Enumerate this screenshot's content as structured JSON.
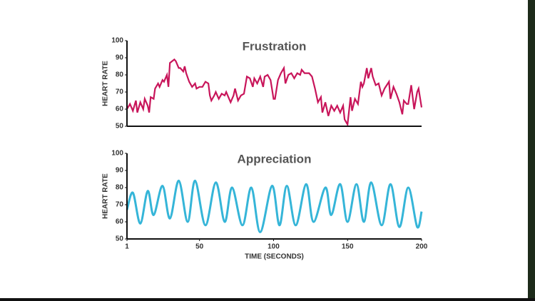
{
  "chart_data": [
    {
      "type": "line",
      "title": "Frustration",
      "y_label": "HEART RATE",
      "interpolation": "linear",
      "xlim": [
        1,
        200
      ],
      "ylim": [
        50,
        100
      ],
      "yticks": [
        50,
        60,
        70,
        80,
        90,
        100
      ],
      "x": [
        1,
        3,
        5,
        7,
        8,
        10,
        12,
        13,
        15,
        16,
        17,
        19,
        20,
        22,
        23,
        25,
        26,
        28,
        29,
        30,
        33,
        34,
        36,
        37,
        39,
        40,
        41,
        43,
        45,
        47,
        48,
        50,
        52,
        54,
        56,
        57,
        58,
        60,
        61,
        63,
        65,
        67,
        68,
        70,
        71,
        73,
        74,
        76,
        78,
        80,
        82,
        84,
        86,
        87,
        89,
        91,
        93,
        94,
        96,
        98,
        100,
        101,
        103,
        105,
        107,
        108,
        110,
        112,
        114,
        116,
        118,
        119,
        121,
        124,
        126,
        128,
        130,
        132,
        133,
        135,
        137,
        139,
        141,
        143,
        145,
        147,
        148,
        150,
        152,
        153,
        155,
        157,
        159,
        160,
        161,
        163,
        164,
        166,
        167,
        169,
        171,
        173,
        175,
        178,
        179,
        181,
        183,
        185,
        187,
        188,
        190,
        191,
        193,
        195,
        197,
        198,
        200
      ],
      "series": [
        {
          "color": "#c8155a",
          "values": [
            60,
            63,
            59,
            65,
            58,
            64,
            60,
            66,
            62,
            58,
            67,
            66,
            72,
            75,
            73,
            77,
            76,
            80,
            73,
            87,
            89,
            88,
            84,
            84,
            82,
            85,
            81,
            76,
            73,
            75,
            72,
            73,
            73,
            76,
            75,
            68,
            65,
            68,
            70,
            66,
            69,
            68,
            70,
            66,
            64,
            68,
            72,
            65,
            68,
            69,
            79,
            78,
            73,
            78,
            75,
            79,
            73,
            79,
            80,
            77,
            66,
            66,
            77,
            81,
            84,
            75,
            80,
            81,
            78,
            81,
            80,
            83,
            81,
            81,
            79,
            72,
            64,
            67,
            58,
            64,
            56,
            62,
            59,
            62,
            58,
            62,
            54,
            51,
            67,
            59,
            66,
            63,
            76,
            73,
            75,
            84,
            78,
            84,
            79,
            74,
            75,
            68,
            72,
            76,
            66,
            73,
            69,
            64,
            57,
            65,
            63,
            63,
            74,
            60,
            70,
            72,
            61
          ]
        }
      ]
    },
    {
      "type": "line",
      "title": "Appreciation",
      "y_label": "HEART RATE",
      "x_label": "TIME (SECONDS)",
      "interpolation": "smooth",
      "xlim": [
        1,
        200
      ],
      "xticks": [
        1,
        50,
        100,
        150,
        200
      ],
      "ylim": [
        50,
        100
      ],
      "yticks": [
        50,
        60,
        70,
        80,
        90,
        100
      ],
      "x": [
        1,
        5,
        10,
        15,
        19,
        25,
        30,
        36,
        42,
        47,
        54,
        61,
        67,
        72,
        79,
        85,
        91,
        99,
        104,
        109,
        115,
        122,
        127,
        135,
        139,
        145,
        150,
        156,
        161,
        166,
        173,
        179,
        185,
        191,
        197,
        200
      ],
      "series": [
        {
          "color": "#35b5d8",
          "values": [
            67,
            77,
            59,
            78,
            64,
            81,
            62,
            84,
            60,
            84,
            58,
            83,
            60,
            80,
            58,
            80,
            54,
            81,
            58,
            81,
            58,
            82,
            60,
            80,
            64,
            82,
            60,
            82,
            60,
            83,
            58,
            82,
            57,
            80,
            57,
            66
          ]
        }
      ]
    }
  ]
}
